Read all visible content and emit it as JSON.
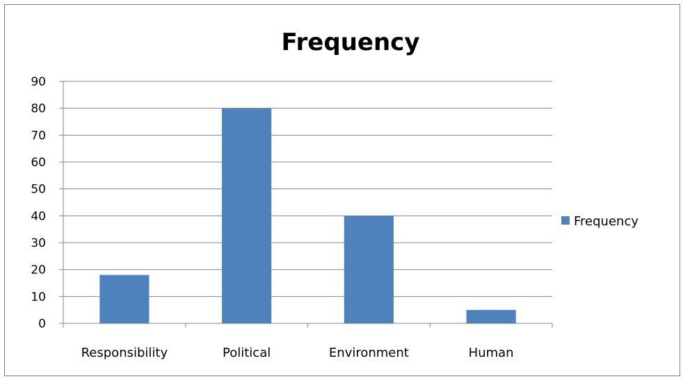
{
  "chart_data": {
    "type": "bar",
    "title": "Frequency",
    "categories": [
      "Responsibility",
      "Political",
      "Environment",
      "Human"
    ],
    "series": [
      {
        "name": "Frequency",
        "values": [
          18,
          80,
          40,
          5
        ],
        "color": "#4f81bd"
      }
    ],
    "xlabel": "",
    "ylabel": "",
    "ylim": [
      0,
      90
    ],
    "yticks": [
      0,
      10,
      20,
      30,
      40,
      50,
      60,
      70,
      80,
      90
    ],
    "grid": true,
    "legend_position": "right"
  }
}
